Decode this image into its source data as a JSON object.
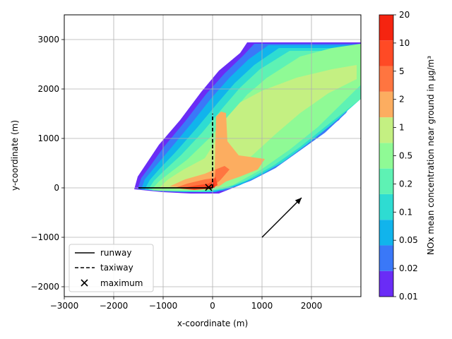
{
  "chart_data": {
    "type": "contour",
    "title": "",
    "xlabel": "x-coordinate (m)",
    "ylabel": "y-coordinate (m)",
    "xlim": [
      -3000,
      3000
    ],
    "ylim": [
      -2200,
      3500
    ],
    "xticks": [
      -3000,
      -2000,
      -1000,
      0,
      1000,
      2000
    ],
    "yticks": [
      -2000,
      -1000,
      0,
      1000,
      2000,
      3000
    ],
    "grid": true,
    "legend_position": "lower-left",
    "legend": [
      {
        "label": "runway",
        "style": "solid"
      },
      {
        "label": "taxiway",
        "style": "dashed"
      },
      {
        "label": "maximum",
        "style": "x-marker"
      }
    ],
    "colorbar": {
      "label": "NOx mean concentration near ground in µg/m³",
      "levels": [
        "0.01",
        "0.02",
        "0.05",
        "0.1",
        "0.2",
        "0.5",
        "1",
        "2",
        "5",
        "10",
        "20"
      ],
      "colors": [
        "#6a2cf6",
        "#3a78f8",
        "#11b4ec",
        "#2edcd2",
        "#5ef2b4",
        "#8ffa95",
        "#c4f082",
        "#fcad60",
        "#ff7540",
        "#ff4a25",
        "#f52410"
      ]
    },
    "runway": {
      "x": [
        -1500,
        0
      ],
      "y": [
        0,
        0
      ]
    },
    "taxiway": {
      "x": [
        0,
        0
      ],
      "y": [
        0,
        1500
      ]
    },
    "maximum": {
      "x": -80,
      "y": 10
    },
    "wind_arrow": {
      "from": [
        1000,
        -1000
      ],
      "to": [
        1800,
        -200
      ]
    }
  }
}
